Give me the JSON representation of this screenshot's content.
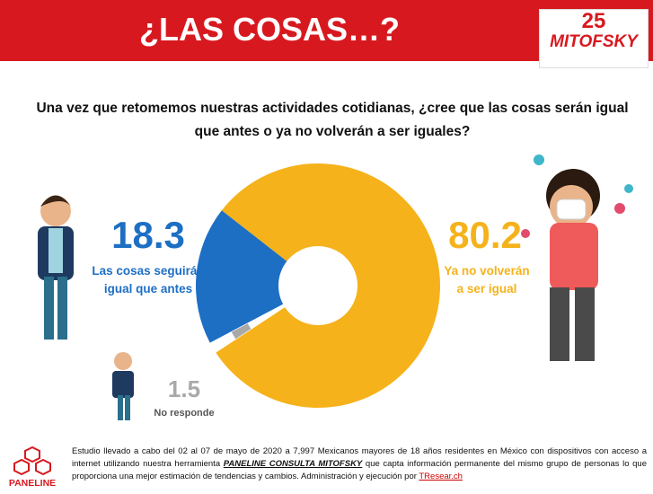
{
  "header": {
    "title": "¿LAS COSAS…?",
    "logo_number": "25",
    "logo_name": "MITOFSKY"
  },
  "chart_data": {
    "type": "pie",
    "donut": true,
    "subtitle": "Una vez que retomemos nuestras actividades cotidianas, ¿cree que las cosas serán igual que antes o ya no volverán a ser iguales?",
    "categories": [
      "Ya no volverán a ser igual",
      "No responde",
      "Las cosas seguirán igual que antes"
    ],
    "values": [
      80.2,
      1.5,
      18.3
    ],
    "colors": [
      "#f5b21b",
      "#a9a9a9",
      "#1d6fc4"
    ],
    "exploded": [
      false,
      true,
      false
    ]
  },
  "footer": {
    "logo": "PANELINE",
    "parts": [
      "Estudio llevado a cabo del 02 al 07 de mayo de 2020 a 7,997 Mexicanos mayores de 18 años residentes en México con dispositivos con acceso a internet utilizando nuestra herramienta",
      "PANELINE CONSULTA MITOFSKY",
      "que capta información permanente del mismo grupo de personas lo que proporciona una mejor estimación de tendencias y cambios. Administración y ejecución por",
      "TResear.ch"
    ]
  }
}
